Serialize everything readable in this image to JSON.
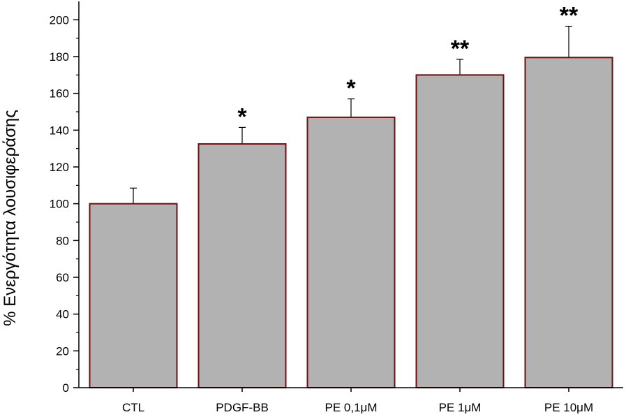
{
  "chart_data": {
    "type": "bar",
    "title": "",
    "xlabel": "",
    "ylabel": "% Ενεργότητα λουσιφεράσης",
    "ylim": [
      0,
      210
    ],
    "yticks": [
      0,
      20,
      40,
      60,
      80,
      100,
      120,
      140,
      160,
      180,
      200
    ],
    "ytick_labels": [
      "0",
      "20",
      "40",
      "60",
      "80",
      "100",
      "120",
      "140",
      "160",
      "180",
      "200"
    ],
    "categories": [
      "CTL",
      "PDGF-BB",
      "PE 0,1μM",
      "PE 1μM",
      "PE 10μM"
    ],
    "values": [
      100,
      132.5,
      147,
      170,
      179.5
    ],
    "errors": [
      8.5,
      9,
      10,
      8.5,
      17
    ],
    "significance": [
      "",
      "*",
      "*",
      "**",
      "**"
    ],
    "grid": false,
    "legend": "none",
    "colors": {
      "bar_fill": "#b2b2b2",
      "bar_stroke": "#6b0f0f",
      "axis": "#000000",
      "error": "#000000"
    }
  }
}
